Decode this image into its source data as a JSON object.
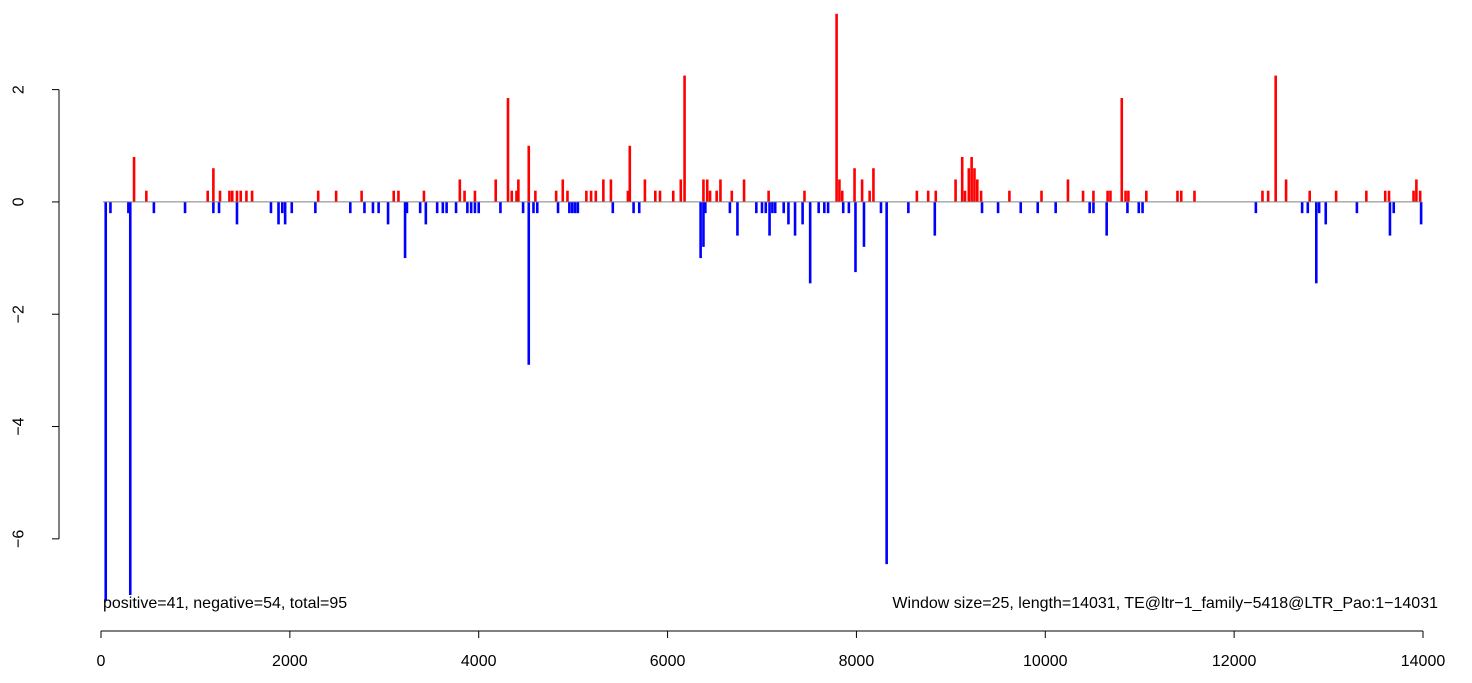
{
  "chart_data": {
    "type": "bar",
    "title": "",
    "xlabel": "",
    "ylabel": "",
    "xlim": [
      0,
      14000
    ],
    "ylim": [
      -7,
      3.4
    ],
    "x_ticks": [
      {
        "value": 0,
        "label": "0"
      },
      {
        "value": 2000,
        "label": "2000"
      },
      {
        "value": 4000,
        "label": "4000"
      },
      {
        "value": 6000,
        "label": "6000"
      },
      {
        "value": 8000,
        "label": "8000"
      },
      {
        "value": 10000,
        "label": "10000"
      },
      {
        "value": 12000,
        "label": "12000"
      },
      {
        "value": 14000,
        "label": "14000"
      }
    ],
    "y_ticks": [
      {
        "value": 2,
        "label": "2"
      },
      {
        "value": 0,
        "label": "0"
      },
      {
        "value": -2,
        "label": "−2"
      },
      {
        "value": -4,
        "label": "−4"
      },
      {
        "value": -6,
        "label": "−6"
      }
    ],
    "colors": {
      "positive": "#ff0000",
      "negative": "#0000ff",
      "baseline": "#808080"
    },
    "annotations": {
      "left": "positive=41, negative=54, total=95",
      "right": "Window size=25, length=14031, TE@ltr−1_family−5418@LTR_Pao:1−14031"
    },
    "window": 25,
    "series": [
      {
        "sign": "positive",
        "points": [
          [
            350,
            0.8
          ],
          [
            480,
            0.2
          ],
          [
            1130,
            0.2
          ],
          [
            1190,
            0.6
          ],
          [
            1260,
            0.2
          ],
          [
            1360,
            0.2
          ],
          [
            1390,
            0.2
          ],
          [
            1440,
            0.2
          ],
          [
            1480,
            0.2
          ],
          [
            1540,
            0.2
          ],
          [
            1600,
            0.2
          ],
          [
            2300,
            0.2
          ],
          [
            2490,
            0.2
          ],
          [
            2760,
            0.2
          ],
          [
            3100,
            0.2
          ],
          [
            3150,
            0.2
          ],
          [
            3420,
            0.2
          ],
          [
            3800,
            0.4
          ],
          [
            3850,
            0.2
          ],
          [
            3960,
            0.2
          ],
          [
            4180,
            0.4
          ],
          [
            4310,
            1.85
          ],
          [
            4350,
            0.2
          ],
          [
            4400,
            0.2
          ],
          [
            4420,
            0.4
          ],
          [
            4530,
            1.0
          ],
          [
            4600,
            0.2
          ],
          [
            4820,
            0.2
          ],
          [
            4890,
            0.4
          ],
          [
            4940,
            0.2
          ],
          [
            5140,
            0.2
          ],
          [
            5190,
            0.2
          ],
          [
            5240,
            0.2
          ],
          [
            5320,
            0.4
          ],
          [
            5400,
            0.4
          ],
          [
            5580,
            0.2
          ],
          [
            5600,
            1.0
          ],
          [
            5760,
            0.4
          ],
          [
            5870,
            0.2
          ],
          [
            5920,
            0.2
          ],
          [
            6060,
            0.2
          ],
          [
            6140,
            0.4
          ],
          [
            6180,
            2.25
          ],
          [
            6380,
            0.4
          ],
          [
            6420,
            0.4
          ],
          [
            6450,
            0.2
          ],
          [
            6520,
            0.2
          ],
          [
            6560,
            0.4
          ],
          [
            6680,
            0.2
          ],
          [
            6810,
            0.4
          ],
          [
            7070,
            0.2
          ],
          [
            7450,
            0.2
          ],
          [
            7790,
            3.35
          ],
          [
            7820,
            0.4
          ],
          [
            7850,
            0.2
          ],
          [
            7980,
            0.6
          ],
          [
            8060,
            0.4
          ],
          [
            8140,
            0.2
          ],
          [
            8180,
            0.6
          ],
          [
            8640,
            0.2
          ],
          [
            8760,
            0.2
          ],
          [
            8840,
            0.2
          ],
          [
            9050,
            0.4
          ],
          [
            9120,
            0.8
          ],
          [
            9150,
            0.2
          ],
          [
            9190,
            0.6
          ],
          [
            9220,
            0.8
          ],
          [
            9250,
            0.6
          ],
          [
            9280,
            0.4
          ],
          [
            9320,
            0.2
          ],
          [
            9620,
            0.2
          ],
          [
            9960,
            0.2
          ],
          [
            10240,
            0.4
          ],
          [
            10400,
            0.2
          ],
          [
            10510,
            0.2
          ],
          [
            10660,
            0.2
          ],
          [
            10690,
            0.2
          ],
          [
            10810,
            1.85
          ],
          [
            10850,
            0.2
          ],
          [
            10880,
            0.2
          ],
          [
            11070,
            0.2
          ],
          [
            11400,
            0.2
          ],
          [
            11440,
            0.2
          ],
          [
            11580,
            0.2
          ],
          [
            12300,
            0.2
          ],
          [
            12360,
            0.2
          ],
          [
            12440,
            2.25
          ],
          [
            12550,
            0.4
          ],
          [
            12800,
            0.2
          ],
          [
            13080,
            0.2
          ],
          [
            13400,
            0.2
          ],
          [
            13600,
            0.2
          ],
          [
            13640,
            0.2
          ],
          [
            13900,
            0.2
          ],
          [
            13930,
            0.4
          ],
          [
            13970,
            0.2
          ]
        ]
      },
      {
        "sign": "negative",
        "points": [
          [
            50,
            -7.1
          ],
          [
            100,
            -0.2
          ],
          [
            290,
            -0.2
          ],
          [
            310,
            -7.0
          ],
          [
            560,
            -0.2
          ],
          [
            890,
            -0.2
          ],
          [
            1190,
            -0.2
          ],
          [
            1250,
            -0.2
          ],
          [
            1440,
            -0.4
          ],
          [
            1800,
            -0.2
          ],
          [
            1880,
            -0.4
          ],
          [
            1920,
            -0.2
          ],
          [
            1950,
            -0.4
          ],
          [
            2020,
            -0.2
          ],
          [
            2270,
            -0.2
          ],
          [
            2640,
            -0.2
          ],
          [
            2790,
            -0.2
          ],
          [
            2880,
            -0.2
          ],
          [
            2940,
            -0.2
          ],
          [
            3040,
            -0.4
          ],
          [
            3220,
            -1.0
          ],
          [
            3240,
            -0.2
          ],
          [
            3380,
            -0.2
          ],
          [
            3440,
            -0.4
          ],
          [
            3560,
            -0.2
          ],
          [
            3620,
            -0.2
          ],
          [
            3660,
            -0.2
          ],
          [
            3760,
            -0.2
          ],
          [
            3880,
            -0.2
          ],
          [
            3920,
            -0.2
          ],
          [
            3960,
            -0.2
          ],
          [
            4000,
            -0.2
          ],
          [
            4230,
            -0.2
          ],
          [
            4470,
            -0.2
          ],
          [
            4530,
            -2.9
          ],
          [
            4580,
            -0.2
          ],
          [
            4620,
            -0.2
          ],
          [
            4840,
            -0.2
          ],
          [
            4960,
            -0.2
          ],
          [
            4990,
            -0.2
          ],
          [
            5020,
            -0.2
          ],
          [
            5050,
            -0.2
          ],
          [
            5420,
            -0.2
          ],
          [
            5640,
            -0.2
          ],
          [
            5700,
            -0.2
          ],
          [
            6350,
            -1.0
          ],
          [
            6380,
            -0.8
          ],
          [
            6400,
            -0.2
          ],
          [
            6660,
            -0.2
          ],
          [
            6740,
            -0.6
          ],
          [
            6940,
            -0.2
          ],
          [
            7000,
            -0.2
          ],
          [
            7040,
            -0.2
          ],
          [
            7080,
            -0.6
          ],
          [
            7110,
            -0.2
          ],
          [
            7140,
            -0.2
          ],
          [
            7230,
            -0.2
          ],
          [
            7280,
            -0.4
          ],
          [
            7350,
            -0.6
          ],
          [
            7430,
            -0.4
          ],
          [
            7510,
            -1.45
          ],
          [
            7600,
            -0.2
          ],
          [
            7660,
            -0.2
          ],
          [
            7700,
            -0.2
          ],
          [
            7860,
            -0.2
          ],
          [
            7920,
            -0.2
          ],
          [
            7990,
            -1.25
          ],
          [
            8080,
            -0.8
          ],
          [
            8260,
            -0.2
          ],
          [
            8320,
            -6.45
          ],
          [
            8550,
            -0.2
          ],
          [
            8830,
            -0.6
          ],
          [
            9330,
            -0.2
          ],
          [
            9500,
            -0.2
          ],
          [
            9740,
            -0.2
          ],
          [
            9920,
            -0.2
          ],
          [
            10110,
            -0.2
          ],
          [
            10470,
            -0.2
          ],
          [
            10510,
            -0.2
          ],
          [
            10650,
            -0.6
          ],
          [
            10870,
            -0.2
          ],
          [
            10990,
            -0.2
          ],
          [
            11030,
            -0.2
          ],
          [
            12230,
            -0.2
          ],
          [
            12720,
            -0.2
          ],
          [
            12780,
            -0.2
          ],
          [
            12870,
            -1.45
          ],
          [
            12900,
            -0.2
          ],
          [
            12970,
            -0.4
          ],
          [
            13300,
            -0.2
          ],
          [
            13650,
            -0.6
          ],
          [
            13690,
            -0.2
          ],
          [
            13980,
            -0.4
          ]
        ]
      }
    ]
  }
}
